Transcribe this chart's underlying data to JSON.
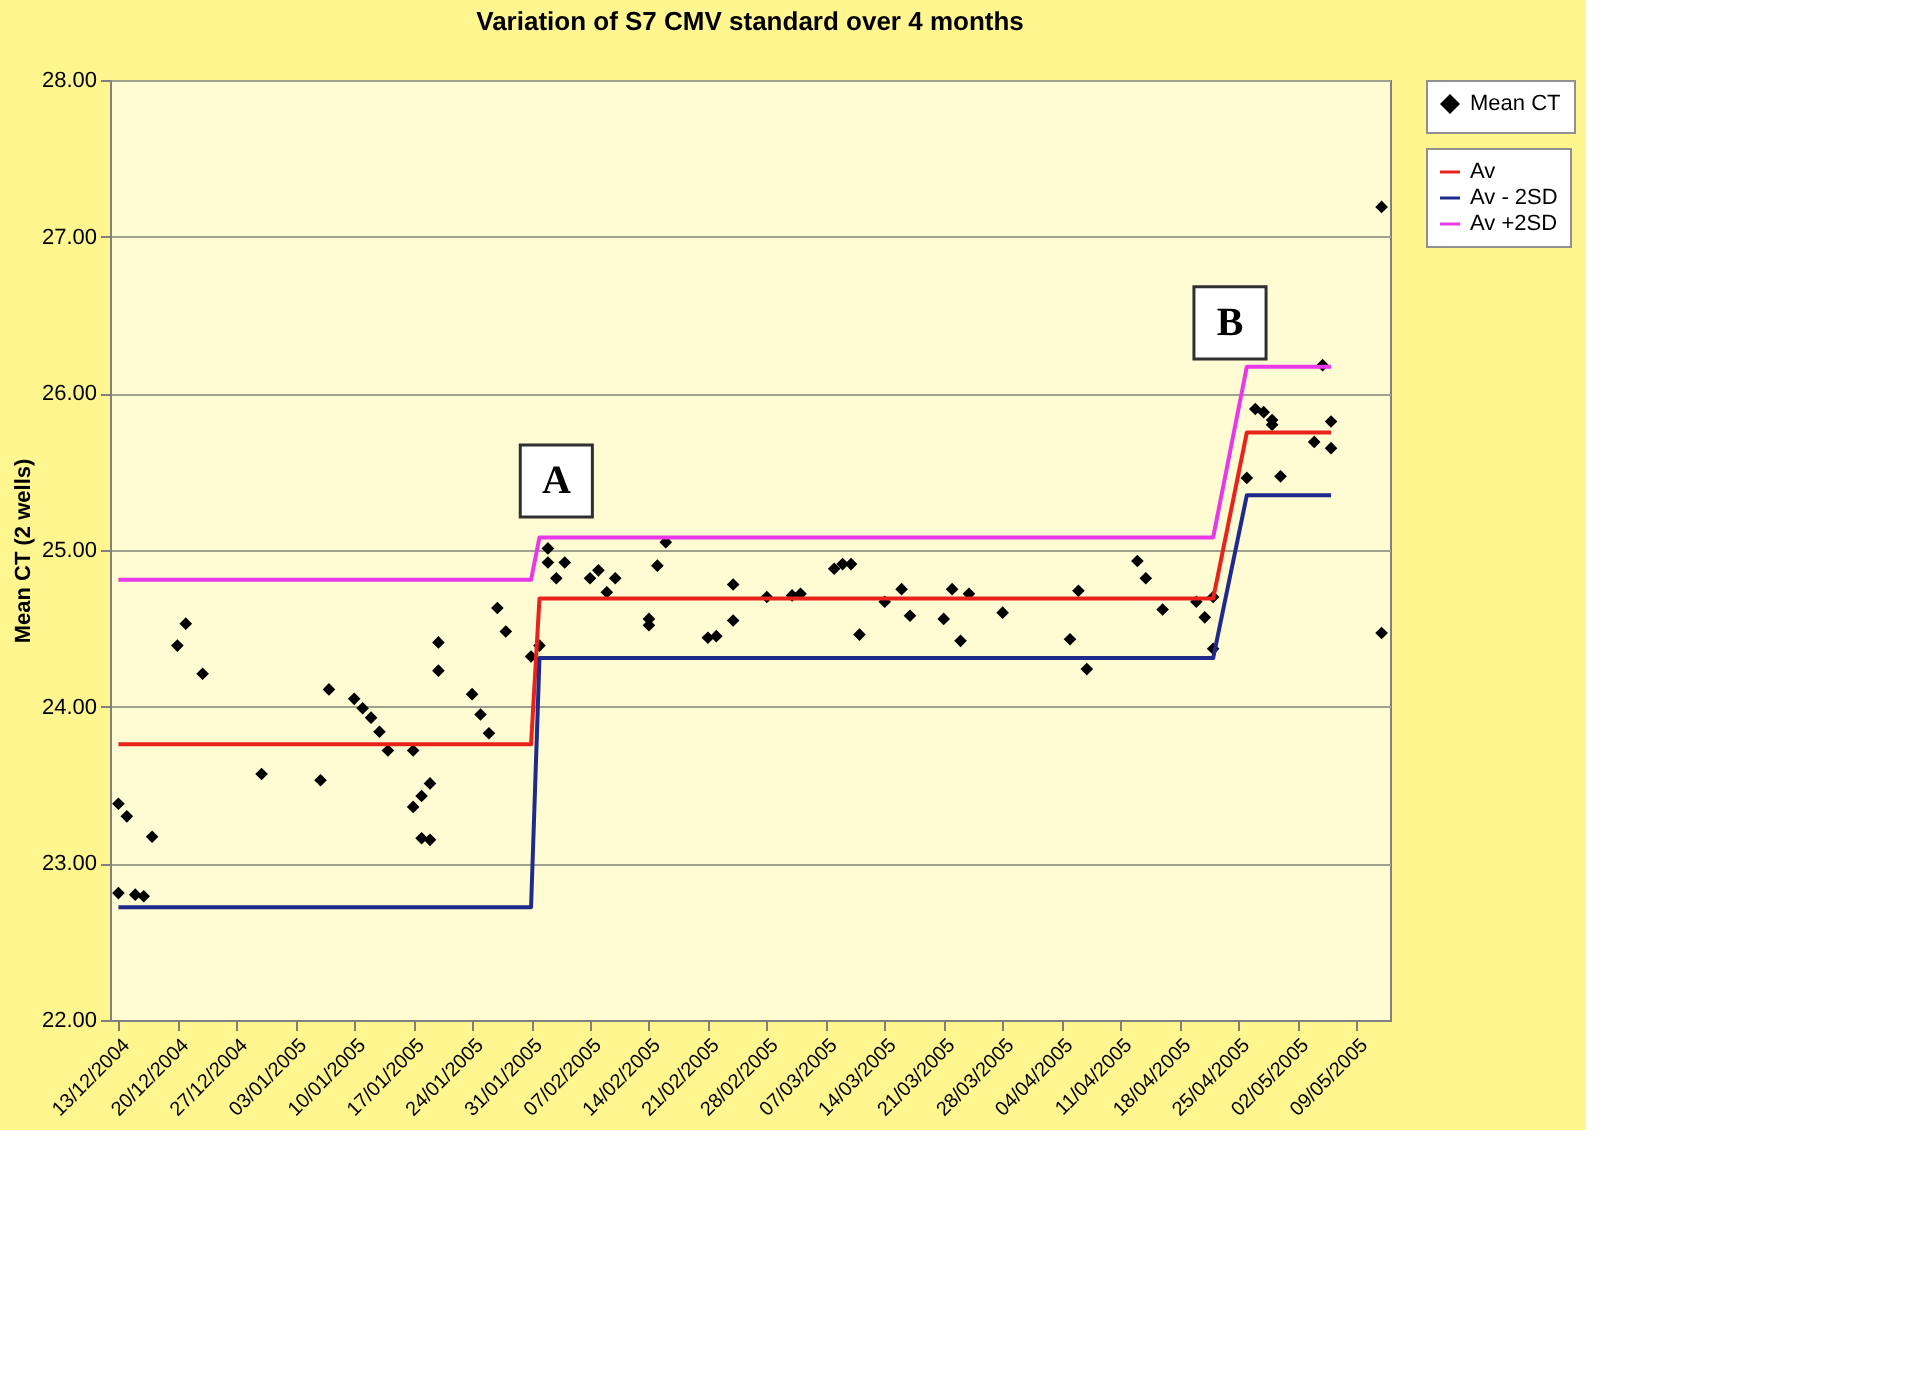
{
  "chart_data": {
    "type": "scatter",
    "title": "Variation of S7 CMV standard over 4 months",
    "ylabel": "Mean CT (2 wells)",
    "xlim": [
      "2004-12-12",
      "2005-05-13"
    ],
    "xticks": [
      {
        "value": "2004-12-13",
        "label": "13/12/2004"
      },
      {
        "value": "2004-12-20",
        "label": "20/12/2004"
      },
      {
        "value": "2004-12-27",
        "label": "27/12/2004"
      },
      {
        "value": "2005-01-03",
        "label": "03/01/2005"
      },
      {
        "value": "2005-01-10",
        "label": "10/01/2005"
      },
      {
        "value": "2005-01-17",
        "label": "17/01/2005"
      },
      {
        "value": "2005-01-24",
        "label": "24/01/2005"
      },
      {
        "value": "2005-01-31",
        "label": "31/01/2005"
      },
      {
        "value": "2005-02-07",
        "label": "07/02/2005"
      },
      {
        "value": "2005-02-14",
        "label": "14/02/2005"
      },
      {
        "value": "2005-02-21",
        "label": "21/02/2005"
      },
      {
        "value": "2005-02-28",
        "label": "28/02/2005"
      },
      {
        "value": "2005-03-07",
        "label": "07/03/2005"
      },
      {
        "value": "2005-03-14",
        "label": "14/03/2005"
      },
      {
        "value": "2005-03-21",
        "label": "21/03/2005"
      },
      {
        "value": "2005-03-28",
        "label": "28/03/2005"
      },
      {
        "value": "2005-04-04",
        "label": "04/04/2005"
      },
      {
        "value": "2005-04-11",
        "label": "11/04/2005"
      },
      {
        "value": "2005-04-18",
        "label": "18/04/2005"
      },
      {
        "value": "2005-04-25",
        "label": "25/04/2005"
      },
      {
        "value": "2005-05-02",
        "label": "02/05/2005"
      },
      {
        "value": "2005-05-09",
        "label": "09/05/2005"
      }
    ],
    "ylim": [
      22,
      28
    ],
    "yticks": [
      {
        "value": 22,
        "label": "22.00"
      },
      {
        "value": 23,
        "label": "23.00"
      },
      {
        "value": 24,
        "label": "24.00"
      },
      {
        "value": 25,
        "label": "25.00"
      },
      {
        "value": 26,
        "label": "26.00"
      },
      {
        "value": 27,
        "label": "27.00"
      },
      {
        "value": 28,
        "label": "28.00"
      }
    ],
    "grid": "y",
    "legend": "right",
    "series": [
      {
        "name": "Mean CT",
        "marker": "diamond",
        "color": "#000000",
        "x": [
          "2004-12-13",
          "2004-12-14",
          "2004-12-13",
          "2004-12-15",
          "2004-12-16",
          "2004-12-17",
          "2004-12-20",
          "2004-12-21",
          "2004-12-23",
          "2004-12-30",
          "2005-01-06",
          "2005-01-07",
          "2005-01-10",
          "2005-01-11",
          "2005-01-12",
          "2005-01-13",
          "2005-01-14",
          "2005-01-17",
          "2005-01-17",
          "2005-01-18",
          "2005-01-18",
          "2005-01-19",
          "2005-01-19",
          "2005-01-20",
          "2005-01-20",
          "2005-01-24",
          "2005-01-25",
          "2005-01-26",
          "2005-01-27",
          "2005-01-28",
          "2005-01-31",
          "2005-02-01",
          "2005-02-02",
          "2005-02-02",
          "2005-02-03",
          "2005-02-04",
          "2005-02-07",
          "2005-02-08",
          "2005-02-09",
          "2005-02-10",
          "2005-02-14",
          "2005-02-14",
          "2005-02-15",
          "2005-02-16",
          "2005-02-21",
          "2005-02-22",
          "2005-02-24",
          "2005-02-24",
          "2005-02-28",
          "2005-03-03",
          "2005-03-04",
          "2005-03-08",
          "2005-03-09",
          "2005-03-10",
          "2005-03-11",
          "2005-03-14",
          "2005-03-16",
          "2005-03-17",
          "2005-03-21",
          "2005-03-22",
          "2005-03-23",
          "2005-03-24",
          "2005-03-28",
          "2005-04-05",
          "2005-04-06",
          "2005-04-07",
          "2005-04-13",
          "2005-04-14",
          "2005-04-16",
          "2005-04-20",
          "2005-04-21",
          "2005-04-22",
          "2005-04-22",
          "2005-04-26",
          "2005-04-27",
          "2005-04-28",
          "2005-04-29",
          "2005-04-29",
          "2005-04-30",
          "2005-05-04",
          "2005-05-05",
          "2005-05-06",
          "2005-05-06",
          "2005-05-12",
          "2005-05-12"
        ],
        "values": [
          23.38,
          23.3,
          22.81,
          22.8,
          22.79,
          23.17,
          24.39,
          24.53,
          24.21,
          23.57,
          23.53,
          24.11,
          24.05,
          23.99,
          23.93,
          23.84,
          23.72,
          23.72,
          23.36,
          23.43,
          23.16,
          23.51,
          23.15,
          24.41,
          24.23,
          24.08,
          23.95,
          23.83,
          24.63,
          24.48,
          24.32,
          24.39,
          25.01,
          24.92,
          24.82,
          24.92,
          24.82,
          24.87,
          24.73,
          24.82,
          24.56,
          24.52,
          24.9,
          25.05,
          24.44,
          24.45,
          24.78,
          24.55,
          24.7,
          24.71,
          24.72,
          24.88,
          24.91,
          24.91,
          24.46,
          24.67,
          24.75,
          24.58,
          24.56,
          24.75,
          24.42,
          24.72,
          24.6,
          24.43,
          24.74,
          24.24,
          24.93,
          24.82,
          24.62,
          24.67,
          24.57,
          24.7,
          24.37,
          25.46,
          25.9,
          25.88,
          25.83,
          25.8,
          25.47,
          25.69,
          26.18,
          25.82,
          25.65,
          27.19,
          24.47
        ]
      },
      {
        "name": "Av",
        "type": "line",
        "color": "#e8231c",
        "x": [
          "2004-12-13",
          "2005-01-31",
          "2005-02-01",
          "2005-04-22",
          "2005-04-26",
          "2005-05-06"
        ],
        "values": [
          23.76,
          23.76,
          24.69,
          24.69,
          25.75,
          25.75
        ]
      },
      {
        "name": "Av - 2SD",
        "type": "line",
        "color": "#1f2a8c",
        "x": [
          "2004-12-13",
          "2005-01-31",
          "2005-02-01",
          "2005-04-22",
          "2005-04-26",
          "2005-05-06"
        ],
        "values": [
          22.72,
          22.72,
          24.31,
          24.31,
          25.35,
          25.35
        ]
      },
      {
        "name": "Av +2SD",
        "type": "line",
        "color": "#e838e8",
        "x": [
          "2004-12-13",
          "2005-01-31",
          "2005-02-01",
          "2005-04-22",
          "2005-04-26",
          "2005-05-06"
        ],
        "values": [
          24.81,
          24.81,
          25.08,
          25.08,
          26.17,
          26.17
        ]
      }
    ],
    "annotations": [
      {
        "text": "A",
        "x": "2005-02-03",
        "y": 25.44
      },
      {
        "text": "B",
        "x": "2005-04-24",
        "y": 26.45
      }
    ]
  }
}
